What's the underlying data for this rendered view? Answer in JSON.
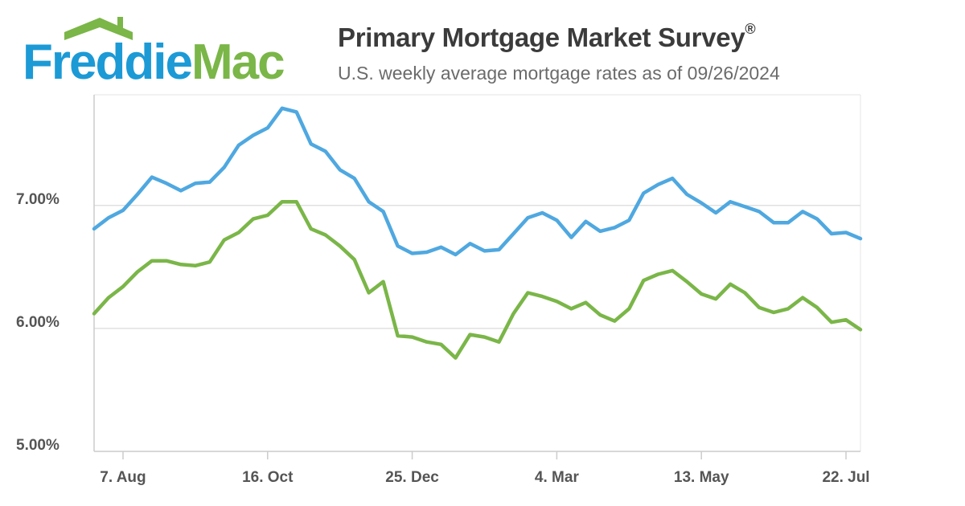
{
  "logo": {
    "text_part1": "Freddie",
    "text_part2": "Mac",
    "color_blue": "#1c9ad6",
    "color_green": "#7ab648"
  },
  "header": {
    "title": "Primary Mortgage Market Survey",
    "title_mark": "®",
    "subtitle": "U.S. weekly average mortgage rates as of 09/26/2024"
  },
  "chart_data": {
    "type": "line",
    "ylim": [
      5.0,
      7.9
    ],
    "y_ticks": [
      {
        "value": 5.0,
        "label": "5.00%"
      },
      {
        "value": 6.0,
        "label": "6.00%"
      },
      {
        "value": 7.0,
        "label": "7.00%"
      }
    ],
    "x_ticks": [
      {
        "index": 2,
        "label": "7. Aug"
      },
      {
        "index": 12,
        "label": "16. Oct"
      },
      {
        "index": 22,
        "label": "25. Dec"
      },
      {
        "index": 32,
        "label": "4. Mar"
      },
      {
        "index": 42,
        "label": "13. May"
      },
      {
        "index": 52,
        "label": "22. Jul"
      }
    ],
    "grid": true,
    "legend": "none",
    "series": [
      {
        "color": "#4fa8e0",
        "values": [
          6.81,
          6.9,
          6.96,
          7.09,
          7.23,
          7.18,
          7.12,
          7.18,
          7.19,
          7.31,
          7.49,
          7.57,
          7.63,
          7.79,
          7.76,
          7.5,
          7.44,
          7.29,
          7.22,
          7.03,
          6.95,
          6.67,
          6.61,
          6.62,
          6.66,
          6.6,
          6.69,
          6.63,
          6.64,
          6.77,
          6.9,
          6.94,
          6.88,
          6.74,
          6.87,
          6.79,
          6.82,
          6.88,
          7.1,
          7.17,
          7.22,
          7.09,
          7.02,
          6.94,
          7.03,
          6.99,
          6.95,
          6.86,
          6.86,
          6.95,
          6.89,
          6.77,
          6.78,
          6.73
        ]
      },
      {
        "color": "#7ab648",
        "values": [
          6.12,
          6.25,
          6.34,
          6.46,
          6.55,
          6.55,
          6.52,
          6.51,
          6.54,
          6.72,
          6.78,
          6.89,
          6.92,
          7.03,
          7.03,
          6.81,
          6.76,
          6.67,
          6.56,
          6.29,
          6.38,
          5.94,
          5.93,
          5.89,
          5.87,
          5.76,
          5.95,
          5.93,
          5.89,
          6.12,
          6.29,
          6.26,
          6.22,
          6.16,
          6.21,
          6.11,
          6.06,
          6.16,
          6.39,
          6.44,
          6.47,
          6.38,
          6.28,
          6.24,
          6.36,
          6.29,
          6.17,
          6.13,
          6.16,
          6.25,
          6.17,
          6.05,
          6.07,
          5.99
        ]
      }
    ]
  }
}
